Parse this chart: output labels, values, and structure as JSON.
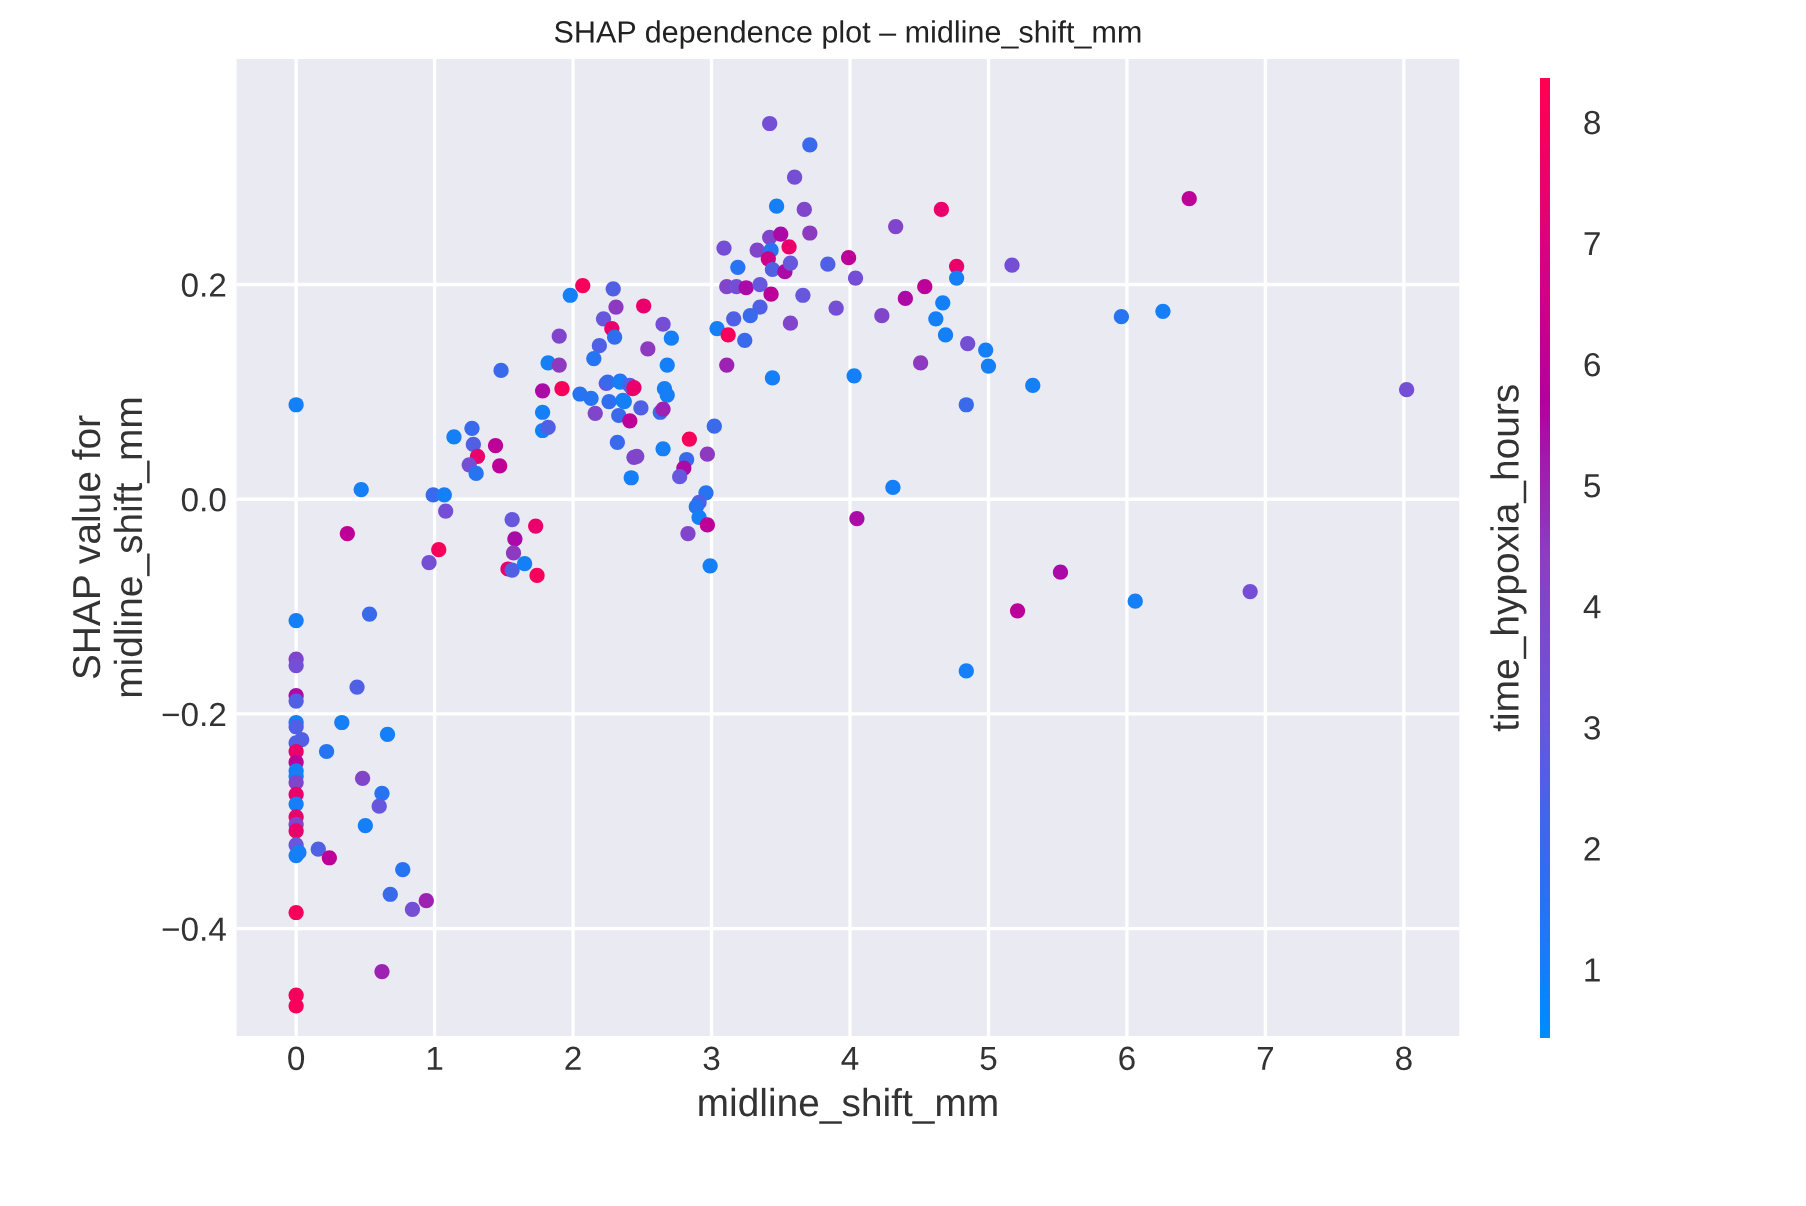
{
  "chart_data": {
    "type": "scatter",
    "title": "SHAP dependence plot – midline_shift_mm",
    "xlabel": "midline_shift_mm",
    "ylabel": "SHAP value for\nmidline_shift_mm",
    "clabel": "time_hypoxia_hours",
    "x": [
      0,
      1.98,
      2.07,
      2.29,
      2.31,
      2.22,
      2.28,
      2.3,
      1.9,
      2.19,
      2.15,
      1.82,
      1.9,
      1.48,
      1.78,
      1.92,
      2.05,
      2.13,
      2.26,
      2.36,
      2.24,
      2.34,
      2.43,
      2.16,
      2.33,
      2.41,
      2.32,
      2.42,
      2.44,
      1.78,
      1.78,
      1.82,
      1.27,
      1.14,
      1.28,
      1.44,
      1.31,
      1.25,
      1.47,
      1.3,
      0.47,
      0.99,
      1.07,
      1.08,
      0.37,
      1.03,
      1.56,
      1.58,
      1.57,
      1.73,
      0.96,
      1.53,
      1.56,
      1.65,
      1.74,
      0,
      0.53,
      0,
      0,
      0.44,
      0,
      0,
      0,
      0,
      0.04,
      0,
      0.33,
      0.66,
      0.22,
      0,
      0,
      0,
      0,
      0,
      0,
      0,
      0,
      0,
      0,
      0,
      0,
      0.02,
      0.48,
      0.62,
      0.6,
      0.5,
      0.16,
      0.24,
      0.77,
      0.68,
      0.94,
      0.84,
      0,
      0.62,
      0,
      0,
      3.42,
      3.71,
      3.6,
      3.47,
      3.67,
      4.66,
      4.33,
      3.42,
      3.5,
      3.71,
      3.56,
      3.33,
      3.43,
      3.09,
      3.41,
      3.44,
      3.53,
      3.57,
      3.19,
      3.84,
      3.99,
      4.04,
      4.77,
      4.77,
      4.54,
      3.11,
      3.18,
      3.25,
      3.35,
      3.43,
      3.66,
      4.4,
      4.67,
      3.35,
      3.9,
      3.28,
      4.23,
      4.62,
      3.16,
      3.04,
      3.12,
      3.24,
      3.57,
      4.69,
      4.85,
      4.98,
      5.0,
      4.51,
      3.11,
      3.44,
      4.03,
      4.84,
      4.31,
      4.05,
      2.51,
      2.65,
      2.54,
      2.71,
      2.68,
      2.25,
      2.34,
      2.41,
      2.44,
      2.37,
      2.66,
      2.68,
      2.49,
      2.63,
      2.65,
      3.02,
      2.65,
      2.84,
      2.46,
      2.82,
      2.97,
      2.8,
      2.77,
      2.96,
      2.91,
      2.89,
      2.91,
      2.97,
      2.83,
      2.99,
      5.52,
      5.21,
      6.06,
      6.89,
      4.84,
      6.45,
      5.17,
      5.96,
      6.26,
      5.32,
      8.02
    ],
    "values": [
      0.088,
      0.19,
      0.199,
      0.196,
      0.179,
      0.168,
      0.159,
      0.151,
      0.152,
      0.143,
      0.131,
      0.127,
      0.125,
      0.12,
      0.101,
      0.103,
      0.098,
      0.094,
      0.091,
      0.092,
      0.108,
      0.11,
      0.103,
      0.08,
      0.078,
      0.073,
      0.053,
      0.02,
      0.039,
      0.081,
      0.064,
      0.067,
      0.066,
      0.058,
      0.051,
      0.05,
      0.04,
      0.032,
      0.031,
      0.024,
      0.009,
      0.004,
      0.004,
      -0.011,
      -0.032,
      -0.047,
      -0.019,
      -0.037,
      -0.05,
      -0.025,
      -0.059,
      -0.065,
      -0.066,
      -0.06,
      -0.071,
      -0.113,
      -0.107,
      -0.149,
      -0.155,
      -0.175,
      -0.183,
      -0.188,
      -0.208,
      -0.212,
      -0.224,
      -0.227,
      -0.208,
      -0.219,
      -0.235,
      -0.235,
      -0.245,
      -0.253,
      -0.258,
      -0.264,
      -0.275,
      -0.284,
      -0.296,
      -0.303,
      -0.309,
      -0.322,
      -0.332,
      -0.329,
      -0.26,
      -0.274,
      -0.286,
      -0.304,
      -0.326,
      -0.334,
      -0.345,
      -0.368,
      -0.374,
      -0.382,
      -0.385,
      -0.44,
      -0.462,
      -0.472,
      0.35,
      0.33,
      0.3,
      0.273,
      0.27,
      0.27,
      0.254,
      0.244,
      0.247,
      0.248,
      0.235,
      0.232,
      0.232,
      0.234,
      0.224,
      0.214,
      0.212,
      0.22,
      0.216,
      0.219,
      0.225,
      0.206,
      0.217,
      0.206,
      0.198,
      0.198,
      0.198,
      0.197,
      0.2,
      0.191,
      0.19,
      0.187,
      0.183,
      0.179,
      0.178,
      0.171,
      0.171,
      0.168,
      0.168,
      0.159,
      0.153,
      0.148,
      0.164,
      0.153,
      0.145,
      0.139,
      0.124,
      0.127,
      0.125,
      0.113,
      0.115,
      0.088,
      0.011,
      -0.018,
      0.18,
      0.163,
      0.14,
      0.15,
      0.125,
      0.109,
      0.109,
      0.106,
      0.104,
      0.091,
      0.103,
      0.097,
      0.085,
      0.081,
      0.084,
      0.068,
      0.047,
      0.056,
      0.04,
      0.037,
      0.042,
      0.029,
      0.021,
      0.006,
      -0.003,
      -0.007,
      -0.017,
      -0.024,
      -0.032,
      -0.062,
      -0.068,
      -0.104,
      -0.095,
      -0.086,
      -0.16,
      0.28,
      0.218,
      0.17,
      0.175,
      0.106,
      0.102
    ],
    "cvalues": [
      1,
      1,
      8,
      2.5,
      4.5,
      3,
      7.5,
      1.8,
      4,
      2.5,
      1.5,
      1,
      4.5,
      2,
      5.5,
      8,
      1.5,
      1.5,
      1.8,
      1,
      3.5,
      2,
      7.5,
      4,
      2,
      6,
      2,
      1,
      4,
      1,
      1,
      2.5,
      2,
      1,
      2.5,
      6,
      7.5,
      3.5,
      6,
      1.5,
      1,
      2,
      1,
      3.5,
      6,
      8,
      3,
      5.5,
      4.5,
      7.5,
      3.5,
      7.5,
      2.5,
      1,
      8,
      1,
      2,
      4,
      3.5,
      2.5,
      5.5,
      2.5,
      1,
      2.5,
      2.5,
      2.5,
      1,
      1,
      1.5,
      7.5,
      6,
      1,
      1,
      4,
      7.5,
      1,
      7.5,
      4,
      7.5,
      3,
      1,
      1,
      4,
      1.5,
      3,
      1,
      2.5,
      6,
      1.5,
      2,
      5,
      3.5,
      8,
      5,
      8,
      8,
      3.5,
      2,
      3.5,
      1,
      4,
      7.5,
      4,
      4,
      5.5,
      4.5,
      7.5,
      4,
      1.5,
      3.5,
      6.5,
      2.5,
      5.5,
      3,
      1.5,
      2.5,
      6,
      3.5,
      7.5,
      1,
      6,
      4,
      3.5,
      5.5,
      3,
      6,
      3,
      5.5,
      1,
      2.5,
      3.5,
      2,
      4,
      1,
      2.5,
      1,
      8,
      2,
      4,
      1,
      3.5,
      1,
      1,
      4.5,
      5,
      1,
      1,
      2,
      1,
      5.5,
      7.5,
      3.5,
      4.5,
      1,
      1,
      2,
      1,
      2.5,
      7.5,
      1,
      1,
      1,
      2.5,
      2,
      5,
      2,
      1,
      8,
      4,
      2,
      4.5,
      5.5,
      3,
      1.5,
      2.5,
      1.5,
      1,
      6,
      4,
      1,
      5.5,
      6,
      1,
      3.5,
      1,
      6,
      3.5,
      1.5,
      1,
      1,
      3.5
    ],
    "xlim": [
      -0.43,
      8.4
    ],
    "ylim": [
      -0.5,
      0.41
    ],
    "xticks": [
      0,
      1,
      2,
      3,
      4,
      5,
      6,
      7,
      8
    ],
    "yticks": [
      {
        "value": -0.4,
        "label": "−0.4"
      },
      {
        "value": -0.2,
        "label": "−0.2"
      },
      {
        "value": 0.0,
        "label": "0.0"
      },
      0.2
    ],
    "clim": [
      0.44,
      8.36
    ],
    "cticks": [
      1,
      2,
      3,
      4,
      5,
      6,
      7,
      8
    ],
    "grid": true,
    "marker": "circle"
  }
}
